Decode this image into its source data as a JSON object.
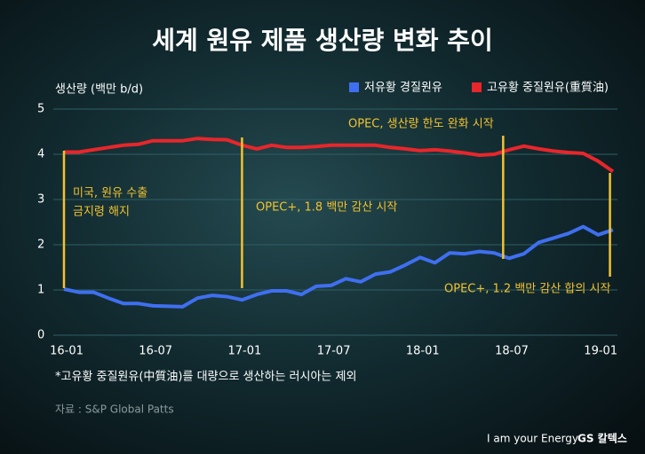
{
  "chart_data": {
    "type": "line",
    "title": "세계 원유 제품 생산량 변화 추이",
    "y_label": "생산량 (백만 b/d)",
    "categories": [
      "16-01",
      null,
      null,
      null,
      null,
      null,
      "16-07",
      null,
      null,
      null,
      null,
      null,
      "17-01",
      null,
      null,
      null,
      null,
      null,
      "17-07",
      null,
      null,
      null,
      null,
      null,
      "18-01",
      null,
      null,
      null,
      null,
      null,
      "18-07",
      null,
      null,
      null,
      null,
      null,
      "19-01",
      null
    ],
    "series": [
      {
        "name": "저유황 경질원유",
        "color": "#3f6ff0",
        "values": [
          1.02,
          0.95,
          0.95,
          0.82,
          0.7,
          0.7,
          0.65,
          0.64,
          0.63,
          0.82,
          0.88,
          0.85,
          0.78,
          0.9,
          0.98,
          0.98,
          0.9,
          1.08,
          1.1,
          1.25,
          1.18,
          1.35,
          1.4,
          1.55,
          1.72,
          1.6,
          1.82,
          1.8,
          1.85,
          1.82,
          1.7,
          1.8,
          2.05,
          2.15,
          2.25,
          2.4,
          2.22,
          2.33
        ]
      },
      {
        "name": "고유황 중질원유(重質油)",
        "color": "#e8262b",
        "values": [
          4.05,
          4.05,
          4.1,
          4.15,
          4.2,
          4.22,
          4.3,
          4.3,
          4.3,
          4.35,
          4.33,
          4.32,
          4.2,
          4.12,
          4.2,
          4.15,
          4.15,
          4.17,
          4.2,
          4.2,
          4.2,
          4.2,
          4.15,
          4.12,
          4.08,
          4.1,
          4.07,
          4.03,
          3.98,
          4.0,
          4.1,
          4.18,
          4.12,
          4.07,
          4.04,
          4.02,
          3.85,
          3.62
        ]
      }
    ],
    "ylim": [
      0,
      5
    ],
    "yticks": [
      0,
      1,
      2,
      3,
      4,
      5
    ],
    "grid": true,
    "annotations": [
      [
        "미국, 원유 수출",
        "금지령 해지"
      ],
      [
        "OPEC+, 1.8 백만 감산 시작"
      ],
      [
        "OPEC, 생산량 한도 완화 시작"
      ],
      [
        "OPEC+,  1.2 백만 감산 합의 시작"
      ]
    ],
    "footnote": "*고유황 중질원유(中質油)를 대량으로 생산하는 러시아는 제외",
    "source": "자료 : S&P Global Patts"
  },
  "branding": {
    "slogan": "I am your Energy",
    "logo": "GS 칼텍스"
  }
}
